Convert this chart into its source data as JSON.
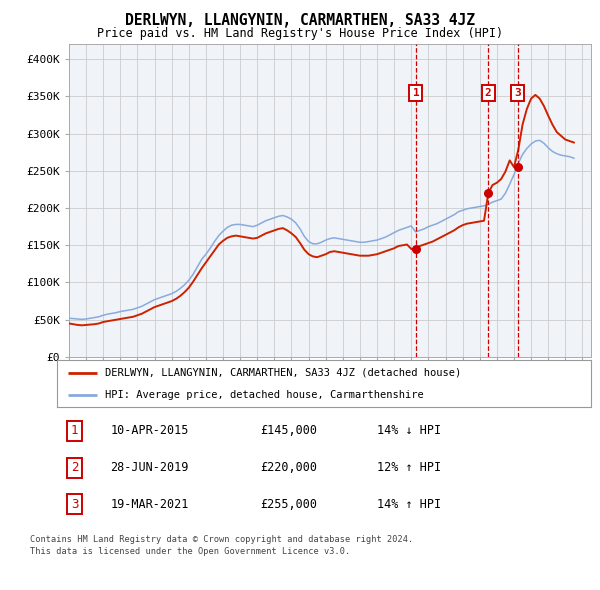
{
  "title": "DERLWYN, LLANGYNIN, CARMARTHEN, SA33 4JZ",
  "subtitle": "Price paid vs. HM Land Registry's House Price Index (HPI)",
  "ylabel_ticks": [
    "£0",
    "£50K",
    "£100K",
    "£150K",
    "£200K",
    "£250K",
    "£300K",
    "£350K",
    "£400K"
  ],
  "ytick_vals": [
    0,
    50000,
    100000,
    150000,
    200000,
    250000,
    300000,
    350000,
    400000
  ],
  "ylim": [
    0,
    420000
  ],
  "xlim_start": 1995.0,
  "xlim_end": 2025.5,
  "hpi_color": "#88aadd",
  "prop_color": "#cc2200",
  "transaction_dates": [
    2015.27,
    2019.49,
    2021.21
  ],
  "transaction_labels": [
    "1",
    "2",
    "3"
  ],
  "transaction_prices": [
    145000,
    220000,
    255000
  ],
  "transaction_display": [
    "10-APR-2015",
    "28-JUN-2019",
    "19-MAR-2021"
  ],
  "transaction_amounts": [
    "£145,000",
    "£220,000",
    "£255,000"
  ],
  "transaction_hpi": [
    "14% ↓ HPI",
    "12% ↑ HPI",
    "14% ↑ HPI"
  ],
  "legend_prop_label": "DERLWYN, LLANGYNIN, CARMARTHEN, SA33 4JZ (detached house)",
  "legend_hpi_label": "HPI: Average price, detached house, Carmarthenshire",
  "footer_line1": "Contains HM Land Registry data © Crown copyright and database right 2024.",
  "footer_line2": "This data is licensed under the Open Government Licence v3.0.",
  "hpi_data_x": [
    1995.0,
    1995.25,
    1995.5,
    1995.75,
    1996.0,
    1996.25,
    1996.5,
    1996.75,
    1997.0,
    1997.25,
    1997.5,
    1997.75,
    1998.0,
    1998.25,
    1998.5,
    1998.75,
    1999.0,
    1999.25,
    1999.5,
    1999.75,
    2000.0,
    2000.25,
    2000.5,
    2000.75,
    2001.0,
    2001.25,
    2001.5,
    2001.75,
    2002.0,
    2002.25,
    2002.5,
    2002.75,
    2003.0,
    2003.25,
    2003.5,
    2003.75,
    2004.0,
    2004.25,
    2004.5,
    2004.75,
    2005.0,
    2005.25,
    2005.5,
    2005.75,
    2006.0,
    2006.25,
    2006.5,
    2006.75,
    2007.0,
    2007.25,
    2007.5,
    2007.75,
    2008.0,
    2008.25,
    2008.5,
    2008.75,
    2009.0,
    2009.25,
    2009.5,
    2009.75,
    2010.0,
    2010.25,
    2010.5,
    2010.75,
    2011.0,
    2011.25,
    2011.5,
    2011.75,
    2012.0,
    2012.25,
    2012.5,
    2012.75,
    2013.0,
    2013.25,
    2013.5,
    2013.75,
    2014.0,
    2014.25,
    2014.5,
    2014.75,
    2015.0,
    2015.25,
    2015.5,
    2015.75,
    2016.0,
    2016.25,
    2016.5,
    2016.75,
    2017.0,
    2017.25,
    2017.5,
    2017.75,
    2018.0,
    2018.25,
    2018.5,
    2018.75,
    2019.0,
    2019.25,
    2019.5,
    2019.75,
    2020.0,
    2020.25,
    2020.5,
    2020.75,
    2021.0,
    2021.25,
    2021.5,
    2021.75,
    2022.0,
    2022.25,
    2022.5,
    2022.75,
    2023.0,
    2023.25,
    2023.5,
    2023.75,
    2024.0,
    2024.25,
    2024.5
  ],
  "hpi_data_y": [
    52000,
    51500,
    51000,
    50500,
    51000,
    52000,
    53000,
    54000,
    56000,
    57500,
    58500,
    59500,
    61000,
    62000,
    63000,
    64000,
    66000,
    68000,
    71000,
    74000,
    77000,
    79000,
    81000,
    83000,
    85000,
    88000,
    92000,
    97000,
    103000,
    111000,
    121000,
    131000,
    138000,
    146000,
    155000,
    163000,
    169000,
    174000,
    177000,
    178000,
    178000,
    177000,
    176000,
    175000,
    177000,
    180000,
    183000,
    185000,
    187000,
    189000,
    190000,
    188000,
    185000,
    180000,
    172000,
    162000,
    155000,
    152000,
    152000,
    154000,
    157000,
    159000,
    160000,
    159000,
    158000,
    157000,
    156000,
    155000,
    154000,
    154000,
    155000,
    156000,
    157000,
    159000,
    161000,
    164000,
    167000,
    170000,
    172000,
    174000,
    176000,
    168000,
    170000,
    172000,
    175000,
    177000,
    179000,
    182000,
    185000,
    188000,
    191000,
    195000,
    197000,
    199000,
    200000,
    201000,
    202000,
    203000,
    205000,
    208000,
    210000,
    212000,
    220000,
    232000,
    245000,
    260000,
    272000,
    280000,
    286000,
    290000,
    291000,
    287000,
    281000,
    276000,
    273000,
    271000,
    270000,
    269000,
    267000
  ],
  "prop_data_x": [
    1995.0,
    1995.25,
    1995.5,
    1995.75,
    1996.0,
    1996.25,
    1996.5,
    1996.75,
    1997.0,
    1997.25,
    1997.5,
    1997.75,
    1998.0,
    1998.25,
    1998.5,
    1998.75,
    1999.0,
    1999.25,
    1999.5,
    1999.75,
    2000.0,
    2000.25,
    2000.5,
    2000.75,
    2001.0,
    2001.25,
    2001.5,
    2001.75,
    2002.0,
    2002.25,
    2002.5,
    2002.75,
    2003.0,
    2003.25,
    2003.5,
    2003.75,
    2004.0,
    2004.25,
    2004.5,
    2004.75,
    2005.0,
    2005.25,
    2005.5,
    2005.75,
    2006.0,
    2006.25,
    2006.5,
    2006.75,
    2007.0,
    2007.25,
    2007.5,
    2007.75,
    2008.0,
    2008.25,
    2008.5,
    2008.75,
    2009.0,
    2009.25,
    2009.5,
    2009.75,
    2010.0,
    2010.25,
    2010.5,
    2010.75,
    2011.0,
    2011.25,
    2011.5,
    2011.75,
    2012.0,
    2012.25,
    2012.5,
    2012.75,
    2013.0,
    2013.25,
    2013.5,
    2013.75,
    2014.0,
    2014.25,
    2014.5,
    2014.75,
    2015.0,
    2015.25,
    2015.5,
    2015.75,
    2016.0,
    2016.25,
    2016.5,
    2016.75,
    2017.0,
    2017.25,
    2017.5,
    2017.75,
    2018.0,
    2018.25,
    2018.5,
    2018.75,
    2019.0,
    2019.25,
    2019.5,
    2019.75,
    2020.0,
    2020.25,
    2020.5,
    2020.75,
    2021.0,
    2021.25,
    2021.5,
    2021.75,
    2022.0,
    2022.25,
    2022.5,
    2022.75,
    2023.0,
    2023.25,
    2023.5,
    2023.75,
    2024.0,
    2024.25,
    2024.5
  ],
  "prop_data_y": [
    45000,
    44000,
    43000,
    42500,
    43000,
    43500,
    44000,
    45000,
    47000,
    48000,
    49000,
    50000,
    51000,
    52000,
    53000,
    54000,
    56000,
    58000,
    61000,
    64000,
    67000,
    69000,
    71000,
    73000,
    75000,
    78000,
    82000,
    87000,
    93000,
    101000,
    110000,
    119000,
    127000,
    135000,
    143000,
    151000,
    156000,
    160000,
    162000,
    163000,
    162000,
    161000,
    160000,
    159000,
    160000,
    163000,
    166000,
    168000,
    170000,
    172000,
    173000,
    170000,
    166000,
    161000,
    153000,
    144000,
    138000,
    135000,
    134000,
    136000,
    138000,
    141000,
    142000,
    141000,
    140000,
    139000,
    138000,
    137000,
    136000,
    136000,
    136000,
    137000,
    138000,
    140000,
    142000,
    144000,
    146000,
    149000,
    150000,
    151000,
    145000,
    146000,
    149000,
    151000,
    153000,
    155000,
    158000,
    161000,
    164000,
    167000,
    170000,
    174000,
    177000,
    179000,
    180000,
    181000,
    182000,
    183000,
    220000,
    231000,
    234000,
    239000,
    249000,
    264000,
    255000,
    278000,
    312000,
    333000,
    347000,
    352000,
    347000,
    337000,
    324000,
    312000,
    302000,
    297000,
    292000,
    290000,
    288000
  ]
}
